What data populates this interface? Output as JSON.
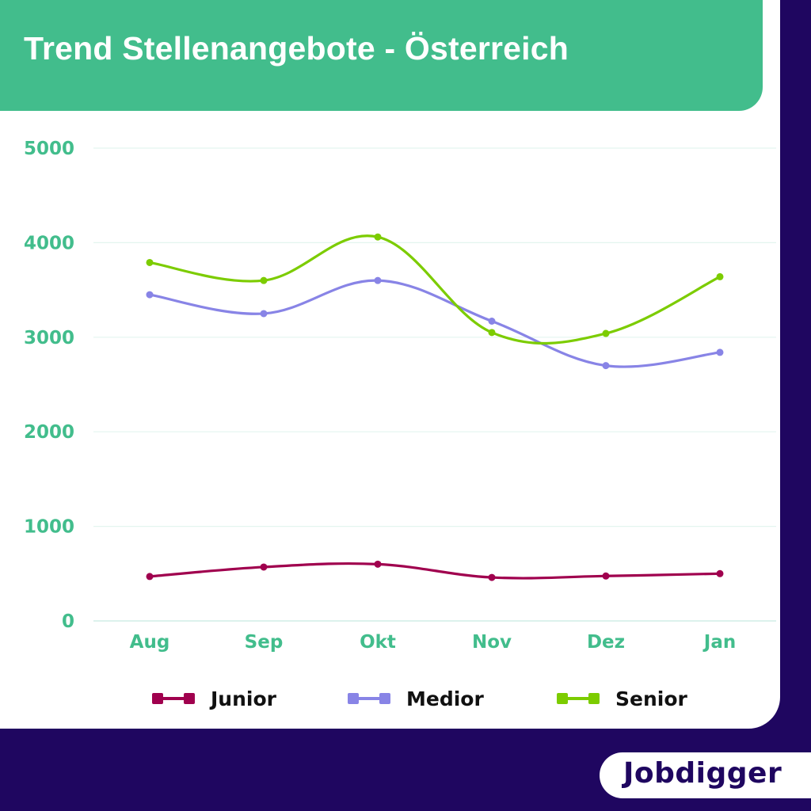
{
  "title": "Trend Stellenangebote - Österreich",
  "brand": "Jobdigger",
  "colors": {
    "header": "#42bd8c",
    "background": "#1f0660",
    "axis_text": "#42bd8c"
  },
  "chart_data": {
    "type": "line",
    "title": "Trend Stellenangebote - Österreich",
    "categories": [
      "Aug",
      "Sep",
      "Okt",
      "Nov",
      "Dez",
      "Jan"
    ],
    "ylim": [
      0,
      5000
    ],
    "yticks": [
      0,
      1000,
      2000,
      3000,
      4000,
      5000
    ],
    "grid": true,
    "legend_position": "bottom",
    "series": [
      {
        "name": "Junior",
        "color": "#a0004e",
        "values": [
          470,
          570,
          600,
          460,
          475,
          500
        ]
      },
      {
        "name": "Medior",
        "color": "#8884e6",
        "values": [
          3450,
          3250,
          3600,
          3170,
          2700,
          2840
        ]
      },
      {
        "name": "Senior",
        "color": "#7ccc00",
        "values": [
          3790,
          3600,
          4060,
          3050,
          3040,
          3640
        ]
      }
    ]
  }
}
